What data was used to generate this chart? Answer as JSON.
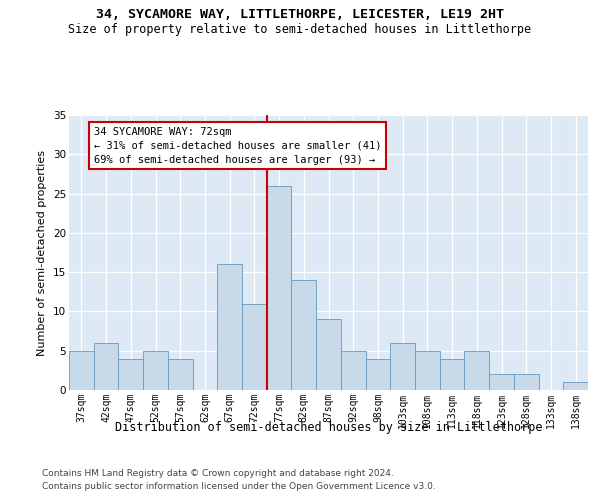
{
  "title": "34, SYCAMORE WAY, LITTLETHORPE, LEICESTER, LE19 2HT",
  "subtitle": "Size of property relative to semi-detached houses in Littlethorpe",
  "xlabel": "Distribution of semi-detached houses by size in Littlethorpe",
  "ylabel": "Number of semi-detached properties",
  "footer1": "Contains HM Land Registry data © Crown copyright and database right 2024.",
  "footer2": "Contains public sector information licensed under the Open Government Licence v3.0.",
  "categories": [
    "37sqm",
    "42sqm",
    "47sqm",
    "52sqm",
    "57sqm",
    "62sqm",
    "67sqm",
    "72sqm",
    "77sqm",
    "82sqm",
    "87sqm",
    "92sqm",
    "98sqm",
    "103sqm",
    "108sqm",
    "113sqm",
    "118sqm",
    "123sqm",
    "128sqm",
    "133sqm",
    "138sqm"
  ],
  "values": [
    5,
    6,
    4,
    5,
    4,
    0,
    16,
    11,
    26,
    14,
    9,
    5,
    4,
    6,
    5,
    4,
    5,
    2,
    2,
    0,
    1
  ],
  "bar_color": "#c8daea",
  "bar_edge_color": "#6699bb",
  "highlight_index": 7,
  "highlight_line_color": "#cc0000",
  "annotation_text": "34 SYCAMORE WAY: 72sqm\n← 31% of semi-detached houses are smaller (41)\n69% of semi-detached houses are larger (93) →",
  "annotation_box_edgecolor": "#cc0000",
  "ylim_max": 35,
  "yticks": [
    0,
    5,
    10,
    15,
    20,
    25,
    30,
    35
  ],
  "plot_bg_color": "#ddeaf5",
  "fig_bg_color": "#ffffff",
  "grid_color": "#ffffff",
  "title_fontsize": 9.5,
  "subtitle_fontsize": 8.5,
  "tick_fontsize": 7,
  "ylabel_fontsize": 8,
  "xlabel_fontsize": 8.5,
  "footer_fontsize": 6.5,
  "ann_fontsize": 7.5
}
